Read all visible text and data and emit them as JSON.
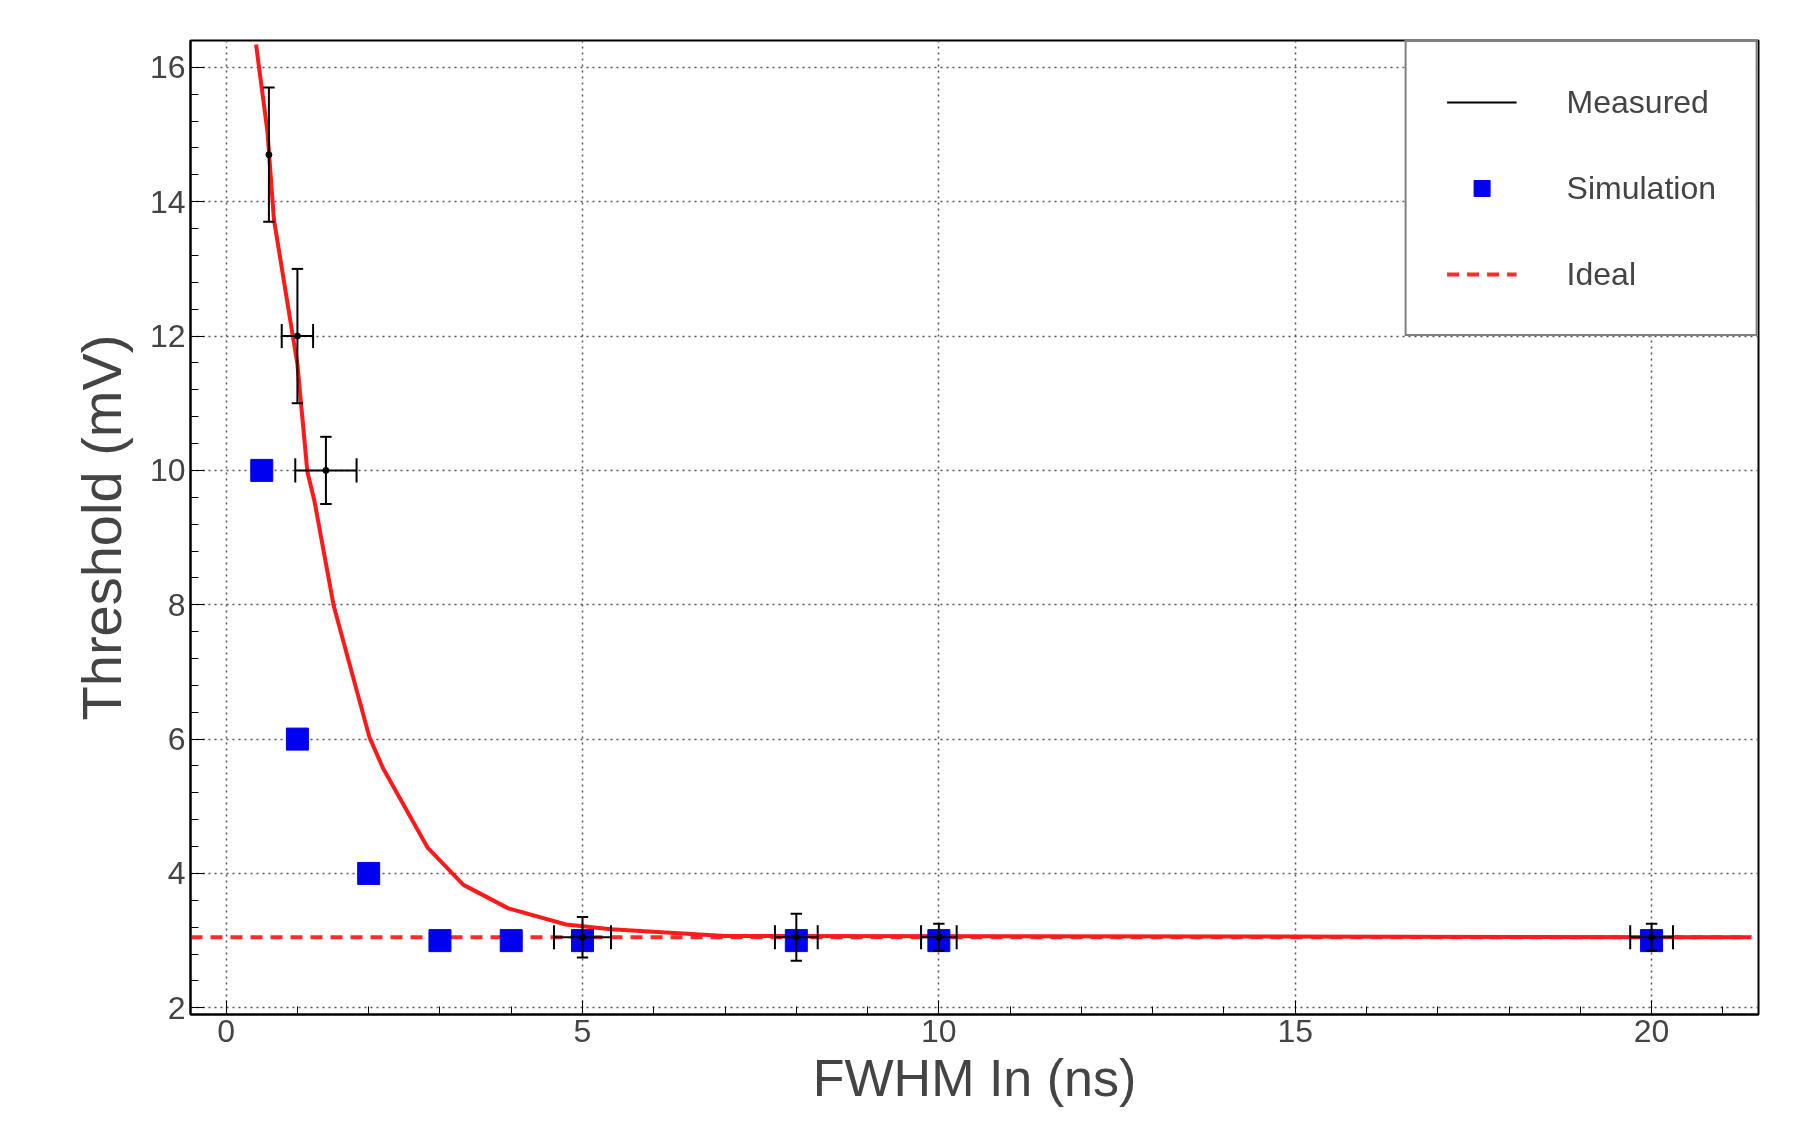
{
  "chart_data": {
    "type": "scatter",
    "xlabel": "FWHM In (ns)",
    "ylabel": "Threshold (mV)",
    "xlim": [
      -0.5,
      21.5
    ],
    "ylim": [
      1.9,
      16.4
    ],
    "xticks": [
      0,
      5,
      10,
      15,
      20
    ],
    "yticks": [
      2,
      4,
      6,
      8,
      10,
      12,
      14,
      16
    ],
    "grid": true,
    "legend": "top right",
    "series": [
      {
        "name": "Measured",
        "marker": "circle",
        "color": "#000000",
        "x": [
          0.6,
          1.0,
          1.4,
          5,
          8,
          10,
          20
        ],
        "values": [
          14.7,
          12,
          10,
          3.05,
          3.05,
          3.05,
          3.05
        ],
        "errors": [
          1,
          1,
          0.5,
          0.3,
          0.35,
          0.2,
          0.2
        ],
        "xerrors": [
          null,
          0.22,
          0.43,
          0.4,
          0.3,
          0.25,
          0.3
        ]
      },
      {
        "name": "Simulation",
        "marker": "square",
        "color": "#0000f0",
        "x": [
          0.5,
          1,
          2,
          3,
          4,
          5,
          8,
          10,
          20
        ],
        "values": [
          10,
          6,
          4,
          3,
          3,
          3,
          3,
          3,
          3
        ]
      },
      {
        "name": "Ideal",
        "type": "line",
        "line_style": "dashed",
        "color": "#ff2a2a",
        "x": [
          -0.5,
          21.4
        ],
        "values": [
          3.05,
          3.05
        ]
      },
      {
        "type": "line",
        "line_style": "solid",
        "color": "#ff1a1a",
        "x": [
          0.42,
          0.58,
          0.67,
          1.0,
          1.14,
          1.24,
          1.51,
          2.01,
          2.2,
          2.83,
          3.33,
          3.96,
          4.77,
          5.4,
          7,
          21.4
        ],
        "values": [
          16.34,
          15.04,
          13.74,
          11.58,
          9.98,
          9.54,
          7.98,
          6.03,
          5.57,
          4.38,
          3.83,
          3.48,
          3.24,
          3.17,
          3.07,
          3.05
        ]
      }
    ]
  }
}
